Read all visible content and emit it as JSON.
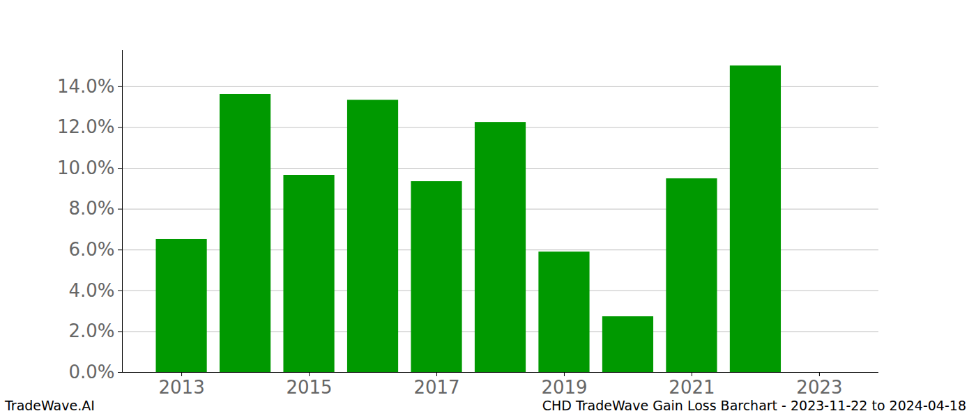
{
  "chart_data": {
    "type": "bar",
    "title": "CHD TradeWave Gain Loss Barchart - 2023-11-22 to 2024-04-18",
    "source": "TradeWave.AI",
    "x": [
      2013,
      2014,
      2015,
      2016,
      2017,
      2018,
      2019,
      2020,
      2021,
      2022
    ],
    "values": [
      6.52,
      13.62,
      9.66,
      13.34,
      9.35,
      12.25,
      5.9,
      2.73,
      9.49,
      15.02
    ],
    "color": "#009900",
    "xlim": [
      2012.07,
      2023.93
    ],
    "xticks": [
      2013,
      2015,
      2017,
      2019,
      2021,
      2023
    ],
    "ylim": [
      0,
      15.77
    ],
    "yticks": [
      {
        "value": 0,
        "label": "0.0%"
      },
      {
        "value": 2,
        "label": "2.0%"
      },
      {
        "value": 4,
        "label": "4.0%"
      },
      {
        "value": 6,
        "label": "6.0%"
      },
      {
        "value": 8,
        "label": "8.0%"
      },
      {
        "value": 10,
        "label": "10.0%"
      },
      {
        "value": 12,
        "label": "12.0%"
      },
      {
        "value": 14,
        "label": "14.0%"
      }
    ],
    "grid": true
  }
}
